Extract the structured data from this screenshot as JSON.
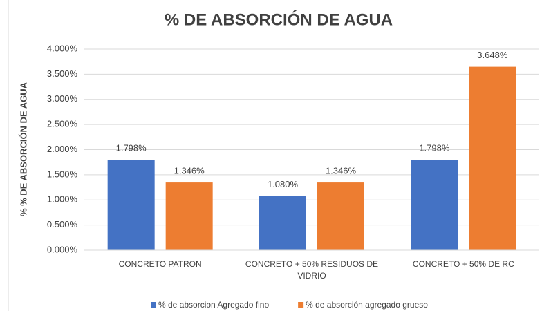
{
  "chart_data": {
    "type": "bar",
    "title": "% DE ABSORCIÓN DE AGUA",
    "y_label": "% % DE ABSORCIÓN DE AGUA",
    "categories": [
      "CONCRETO PATRON",
      "CONCRETO + 50% RESIDUOS DE VIDRIO",
      "CONCRETO + 50% DE RC"
    ],
    "series": [
      {
        "name": "% de absorcion Agregado fino",
        "color": "#4472c4",
        "values": [
          1.798,
          1.08,
          1.798
        ],
        "value_labels": [
          "1.798%",
          "1.080%",
          "1.798%"
        ]
      },
      {
        "name": "% de absorción agregado grueso",
        "color": "#ed7d31",
        "values": [
          1.346,
          1.346,
          3.648
        ],
        "value_labels": [
          "1.346%",
          "1.346%",
          "3.648%"
        ]
      }
    ],
    "ylim": [
      0,
      4
    ],
    "yticks": [
      {
        "value": 0,
        "label": "0.000%"
      },
      {
        "value": 0.5,
        "label": "0.500%"
      },
      {
        "value": 1,
        "label": "1.000%"
      },
      {
        "value": 1.5,
        "label": "1.500%"
      },
      {
        "value": 2,
        "label": "2.000%"
      },
      {
        "value": 2.5,
        "label": "2.500%"
      },
      {
        "value": 3,
        "label": "3.000%"
      },
      {
        "value": 3.5,
        "label": "3.500%"
      },
      {
        "value": 4,
        "label": "4.000%"
      }
    ],
    "grid": true,
    "legend": "bottom"
  }
}
